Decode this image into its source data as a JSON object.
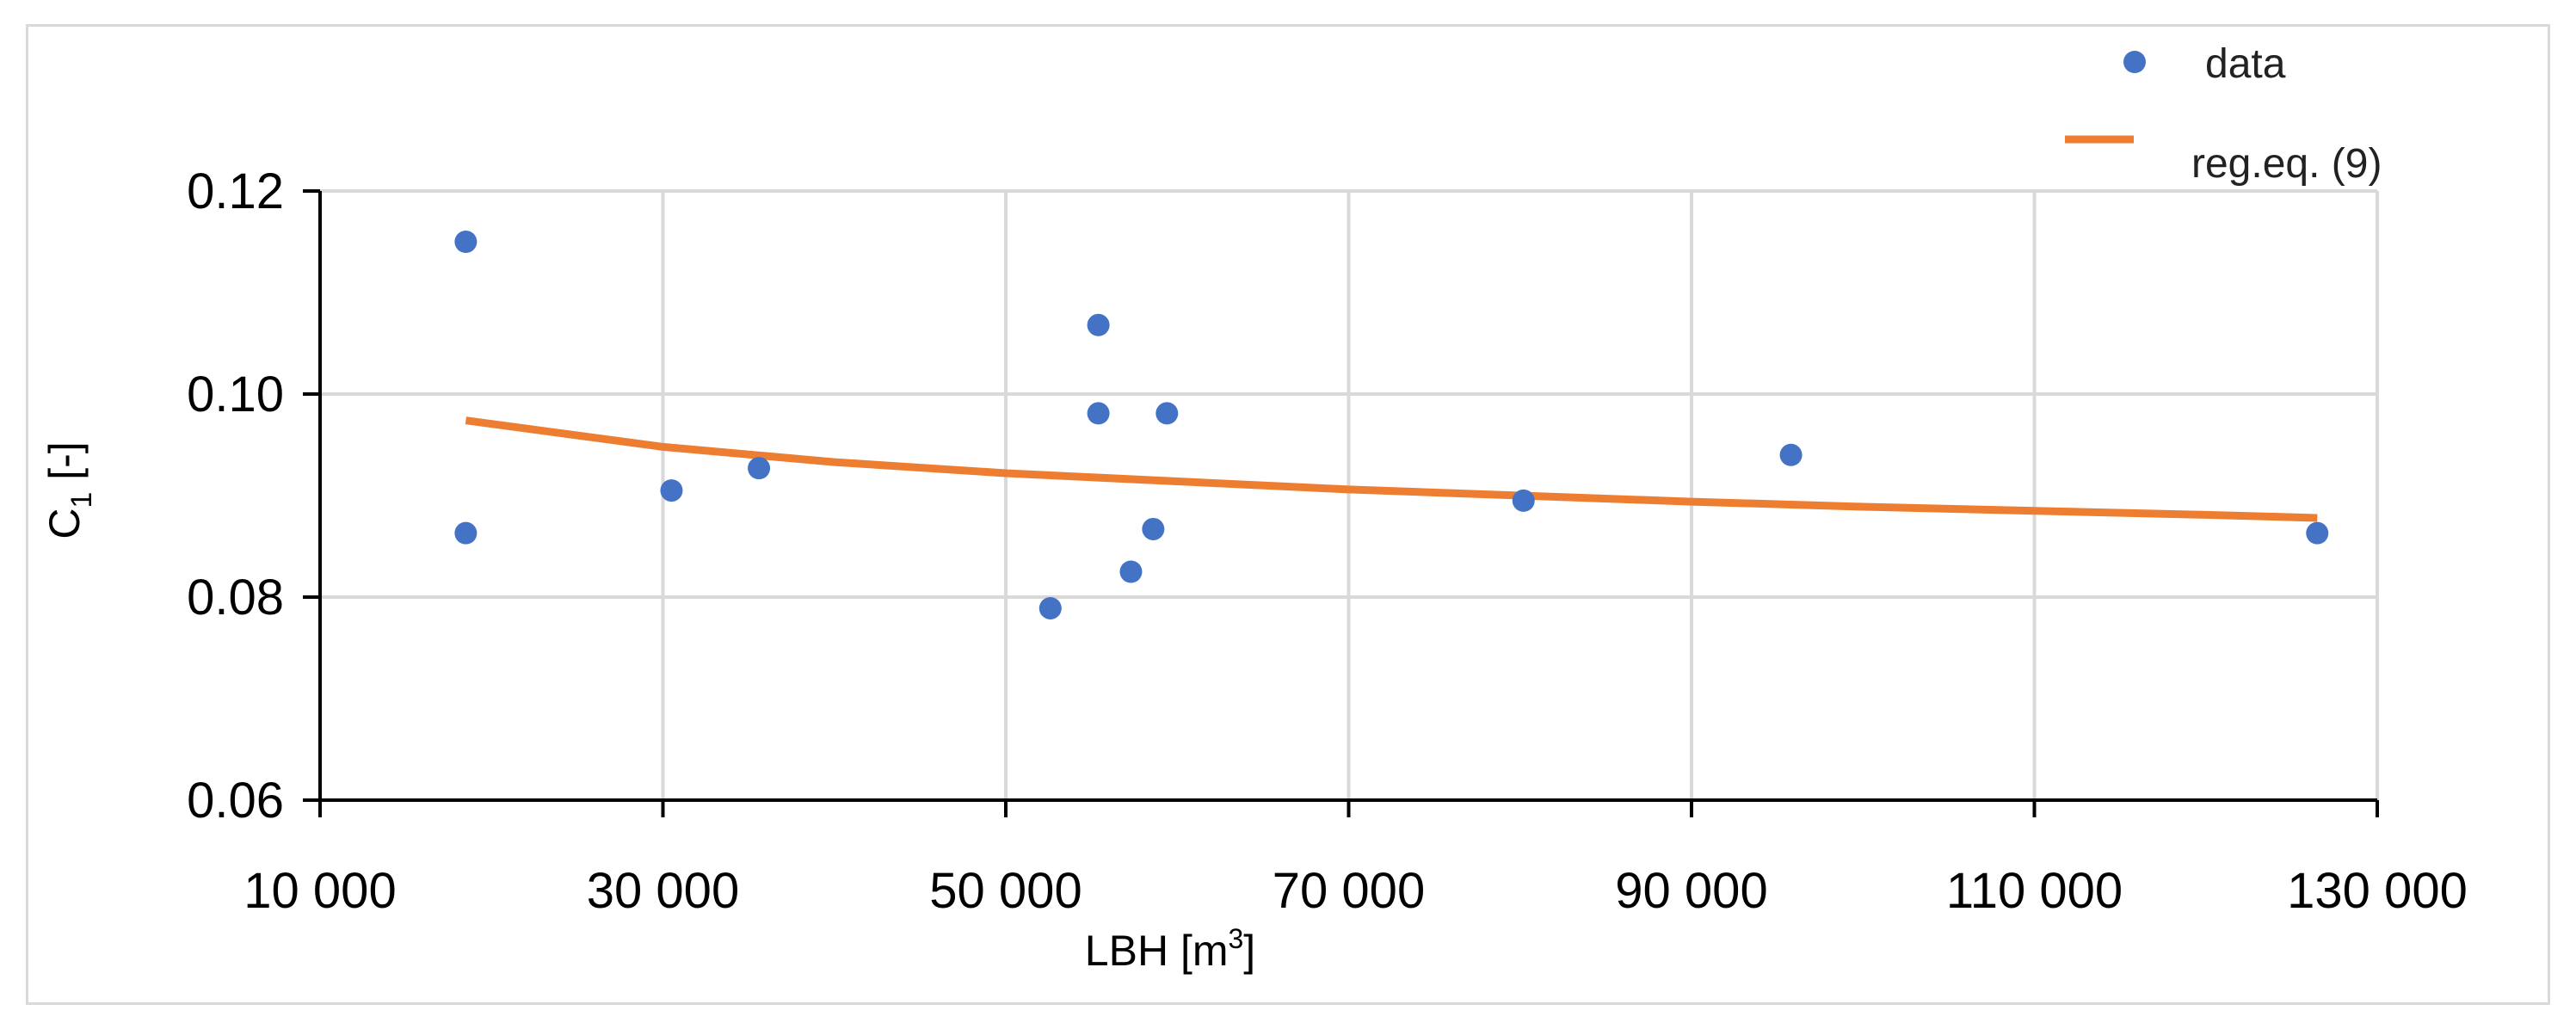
{
  "colors": {
    "data_point": "#4472c4",
    "regression_line": "#ed7d31",
    "grid": "#d9d9d9",
    "axis": "#000000"
  },
  "chart_data": {
    "type": "scatter",
    "xlabel_main": "LBH [m",
    "xlabel_sup": "3",
    "xlabel_end": "]",
    "ylabel_main": "C",
    "ylabel_sub": "1",
    "ylabel_end": " [-]",
    "xlim": [
      10000,
      130000
    ],
    "ylim": [
      0.06,
      0.12
    ],
    "x_ticks": [
      10000,
      30000,
      50000,
      70000,
      90000,
      110000,
      130000
    ],
    "x_tick_labels": [
      "10 000",
      "30 000",
      "50 000",
      "70 000",
      "90 000",
      "110 000",
      "130 000"
    ],
    "y_ticks": [
      0.06,
      0.08,
      0.1,
      0.12
    ],
    "y_tick_labels": [
      "0.06",
      "0.08",
      "0.10",
      "0.12"
    ],
    "grid": true,
    "legend_position": "top-right",
    "series": [
      {
        "name": "data",
        "kind": "scatter",
        "color": "#4472c4",
        "points": [
          [
            18500,
            0.115
          ],
          [
            18500,
            0.0863
          ],
          [
            30500,
            0.0905
          ],
          [
            35600,
            0.0927
          ],
          [
            52600,
            0.0789
          ],
          [
            55400,
            0.1068
          ],
          [
            55400,
            0.0981
          ],
          [
            57300,
            0.0825
          ],
          [
            58600,
            0.0867
          ],
          [
            59400,
            0.0981
          ],
          [
            80200,
            0.0895
          ],
          [
            95800,
            0.094
          ],
          [
            126500,
            0.0863
          ]
        ]
      },
      {
        "name": "reg.eq. (9)",
        "kind": "line",
        "color": "#ed7d31",
        "points": [
          [
            18500,
            0.0974
          ],
          [
            30000,
            0.0948
          ],
          [
            40000,
            0.0933
          ],
          [
            50000,
            0.0922
          ],
          [
            60000,
            0.0914
          ],
          [
            70000,
            0.0906
          ],
          [
            80000,
            0.09
          ],
          [
            90000,
            0.0894
          ],
          [
            100000,
            0.0889
          ],
          [
            110000,
            0.0885
          ],
          [
            120000,
            0.0881
          ],
          [
            126500,
            0.0878
          ]
        ]
      }
    ]
  }
}
